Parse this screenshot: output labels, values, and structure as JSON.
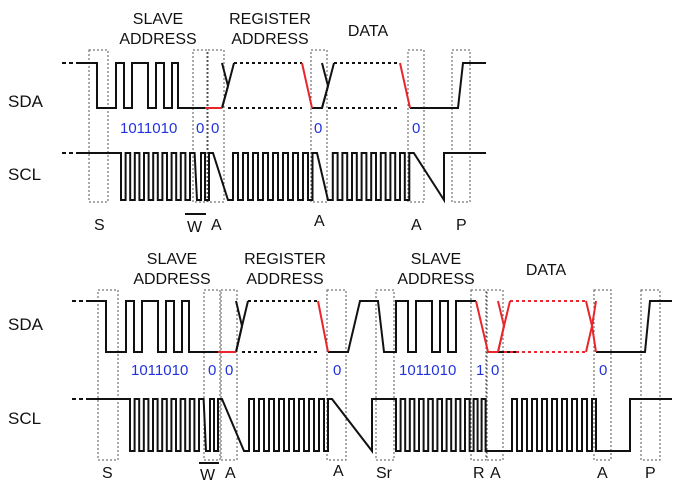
{
  "colors": {
    "signal": "#111111",
    "highlight": "#e8262b",
    "bits": "#2233dd",
    "box": "#555555",
    "text": "#111111"
  },
  "write_diagram": {
    "section_labels": {
      "slave_address": [
        "SLAVE",
        "ADDRESS"
      ],
      "register_address": [
        "REGISTER",
        "ADDRESS"
      ],
      "data": "DATA"
    },
    "row_labels": {
      "sda": "SDA",
      "scl": "SCL"
    },
    "bits": {
      "address": "1011010",
      "rw": "0",
      "ack1": "0",
      "ack2": "0",
      "ack3": "0"
    },
    "markers": [
      "S",
      "W",
      "A",
      "A",
      "A",
      "P"
    ]
  },
  "read_diagram": {
    "section_labels": {
      "slave_address": [
        "SLAVE",
        "ADDRESS"
      ],
      "register_address": [
        "REGISTER",
        "ADDRESS"
      ],
      "slave_address_2": [
        "SLAVE",
        "ADDRESS"
      ],
      "data": "DATA"
    },
    "row_labels": {
      "sda": "SDA",
      "scl": "SCL"
    },
    "bits": {
      "address": "1011010",
      "rw": "0",
      "ack1": "0",
      "ack2": "0",
      "address_2": "1011010",
      "rw_2": "1",
      "ack3": "0",
      "ack4": "0"
    },
    "markers": [
      "S",
      "W",
      "A",
      "A",
      "Sr",
      "R",
      "A",
      "A",
      "P"
    ]
  }
}
